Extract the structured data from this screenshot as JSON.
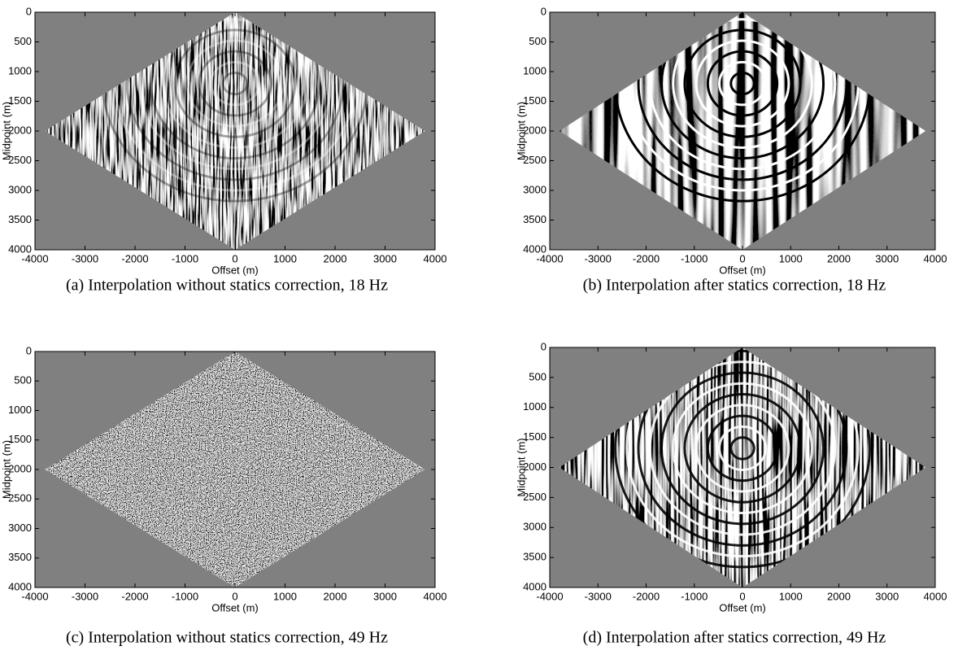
{
  "chart_data": [
    {
      "type": "image",
      "caption": "(a) Interpolation without statics correction, 18 Hz",
      "xlabel": "Offset (m)",
      "ylabel": "Midpoint (m)",
      "xlim": [
        -4000,
        4000
      ],
      "ylim": [
        4000,
        0
      ],
      "xticks": [
        -4000,
        -3000,
        -2000,
        -1000,
        0,
        1000,
        2000,
        3000,
        4000
      ],
      "yticks": [
        0,
        500,
        1000,
        1500,
        2000,
        2500,
        3000,
        3500,
        4000
      ]
    },
    {
      "type": "image",
      "caption": "(b) Interpolation after statics correction, 18 Hz",
      "xlabel": "Offset (m)",
      "ylabel": "Midpoint (m)",
      "xlim": [
        -4000,
        4000
      ],
      "ylim": [
        4000,
        0
      ],
      "xticks": [
        -4000,
        -3000,
        -2000,
        -1000,
        0,
        1000,
        2000,
        3000,
        4000
      ],
      "yticks": [
        0,
        500,
        1000,
        1500,
        2000,
        2500,
        3000,
        3500,
        4000
      ]
    },
    {
      "type": "image",
      "caption": "(c) Interpolation without statics correction, 49 Hz",
      "xlabel": "Offset (m)",
      "ylabel": "Midpoint (m)",
      "xlim": [
        -4000,
        4000
      ],
      "ylim": [
        4000,
        0
      ],
      "xticks": [
        -4000,
        -3000,
        -2000,
        -1000,
        0,
        1000,
        2000,
        3000,
        4000
      ],
      "yticks": [
        0,
        500,
        1000,
        1500,
        2000,
        2500,
        3000,
        3500,
        4000
      ]
    },
    {
      "type": "image",
      "caption": "(d) Interpolation after statics correction, 49 Hz",
      "xlabel": "Offset (m)",
      "ylabel": "Midpoint (m)",
      "xlim": [
        -4000,
        4000
      ],
      "ylim": [
        4000,
        0
      ],
      "xticks": [
        -4000,
        -3000,
        -2000,
        -1000,
        0,
        1000,
        2000,
        3000,
        4000
      ],
      "yticks": [
        0,
        500,
        1000,
        1500,
        2000,
        2500,
        3000,
        3500,
        4000
      ]
    }
  ]
}
